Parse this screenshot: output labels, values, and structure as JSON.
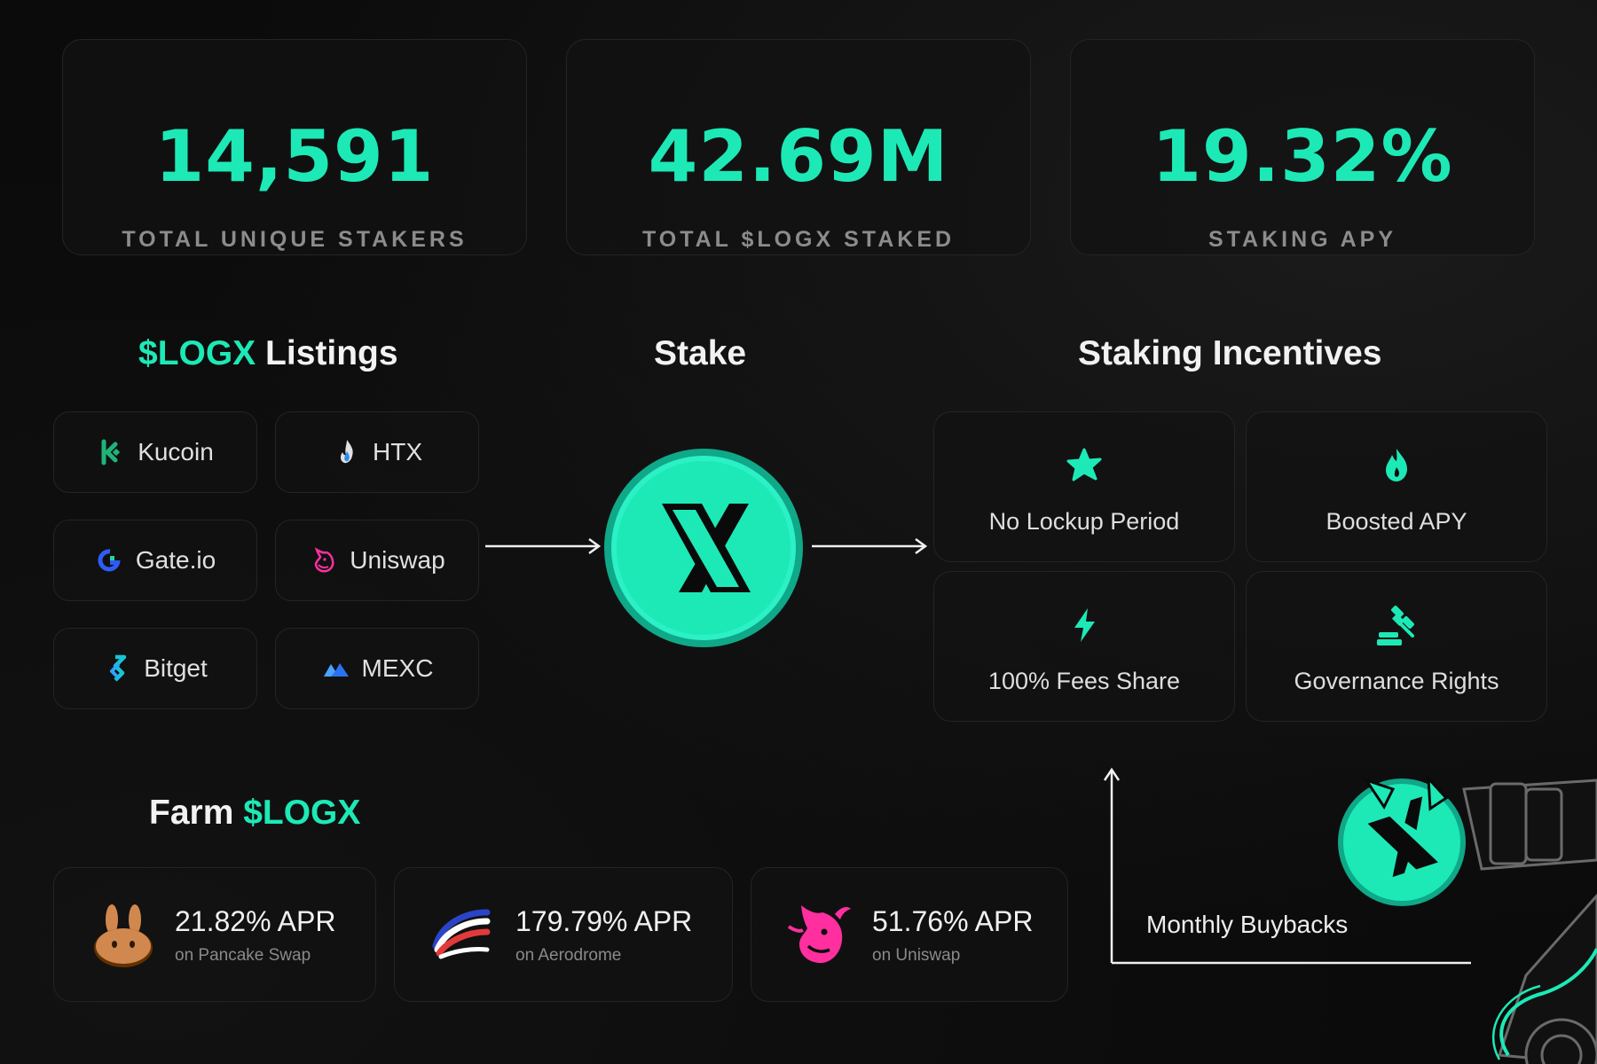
{
  "stats": [
    {
      "value": "14,591",
      "label": "TOTAL UNIQUE STAKERS"
    },
    {
      "value": "42.69M",
      "label": "TOTAL $LOGX STAKED"
    },
    {
      "value": "19.32%",
      "label": "STAKING APY"
    }
  ],
  "listings": {
    "title_accent": "$LOGX",
    "title_rest": " Listings",
    "items": [
      {
        "name": "Kucoin",
        "icon": "kucoin-icon"
      },
      {
        "name": "HTX",
        "icon": "htx-flame-icon"
      },
      {
        "name": "Gate.io",
        "icon": "gateio-icon"
      },
      {
        "name": "Uniswap",
        "icon": "uniswap-unicorn-icon"
      },
      {
        "name": "Bitget",
        "icon": "bitget-icon"
      },
      {
        "name": "MEXC",
        "icon": "mexc-mountain-icon"
      }
    ]
  },
  "stake": {
    "title": "Stake",
    "icon": "logx-x-icon"
  },
  "incentives": {
    "title": "Staking Incentives",
    "items": [
      {
        "label": "No Lockup Period",
        "icon": "star-icon"
      },
      {
        "label": "Boosted APY",
        "icon": "flame-icon"
      },
      {
        "label": "100% Fees Share",
        "icon": "lightning-icon"
      },
      {
        "label": "Governance Rights",
        "icon": "gavel-icon"
      }
    ]
  },
  "farm": {
    "title_rest": "Farm ",
    "title_accent": "$LOGX",
    "items": [
      {
        "apr": "21.82% APR",
        "sub": "on Pancake Swap",
        "icon": "pancakeswap-bunny-icon"
      },
      {
        "apr": "179.79% APR",
        "sub": "on Aerodrome",
        "icon": "aerodrome-icon"
      },
      {
        "apr": "51.76% APR",
        "sub": "on Uniswap",
        "icon": "uniswap-unicorn-icon"
      }
    ]
  },
  "buyback": {
    "label": "Monthly Buybacks",
    "icon": "robot-arm-icon"
  },
  "colors": {
    "accent": "#1de9b6",
    "background": "#0b0b0b",
    "card_border": "#242424"
  }
}
